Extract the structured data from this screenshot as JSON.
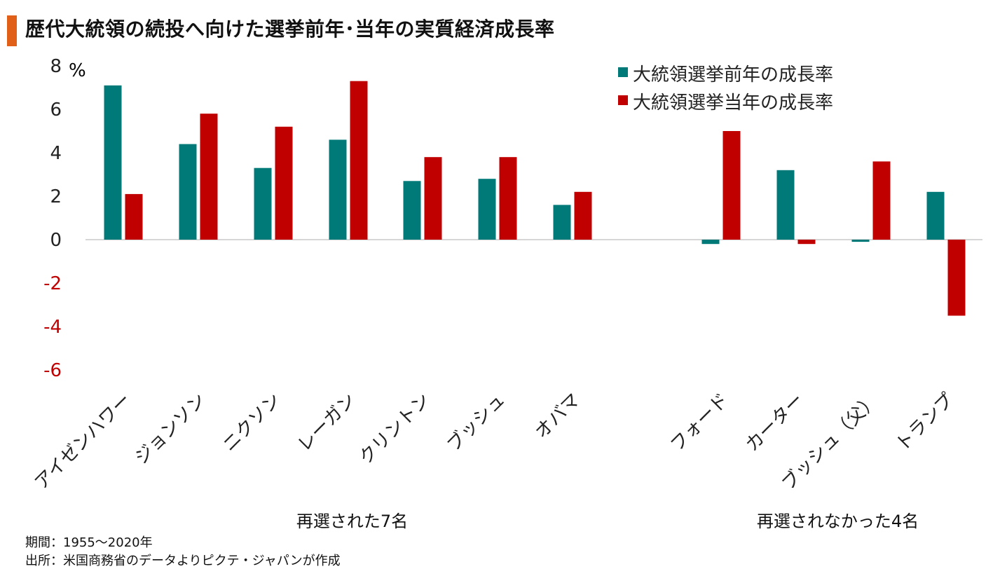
{
  "title": "歴代大統領の続投へ向けた選挙前年･当年の実質経済成長率",
  "colors": {
    "accent": "#e0601a",
    "prev_year": "#007a78",
    "election_year": "#c00000",
    "negative_tick": "#c00000",
    "axis": "#c8c8c8"
  },
  "chart_data": {
    "type": "bar",
    "ylabel": "%",
    "ylim": [
      -6,
      8
    ],
    "yticks": [
      8,
      6,
      4,
      2,
      0,
      -2,
      -4,
      -6
    ],
    "ytick_labels": [
      "8",
      "6",
      "4",
      "2",
      "0",
      "-2",
      "-4",
      "-6"
    ],
    "categories": [
      "アイゼンハワー",
      "ジョンソン",
      "ニクソン",
      "レーガン",
      "クリントン",
      "ブッシュ",
      "オバマ",
      "フォード",
      "カーター",
      "ブッシュ（父）",
      "トランプ"
    ],
    "groups": [
      {
        "label": "再選された7名",
        "count": 7
      },
      {
        "label": "再選されなかった4名",
        "count": 4
      }
    ],
    "legend_position": "top-right",
    "series": [
      {
        "name": "大統領選挙前年の成長率",
        "values": [
          7.1,
          4.4,
          3.3,
          4.6,
          2.7,
          2.8,
          1.6,
          -0.2,
          3.2,
          -0.1,
          2.2
        ]
      },
      {
        "name": "大統領選挙当年の成長率",
        "values": [
          2.1,
          5.8,
          5.2,
          7.3,
          3.8,
          3.8,
          2.2,
          5.0,
          -0.2,
          3.6,
          -3.5
        ]
      }
    ]
  },
  "footnotes": {
    "period": "期間：1955～2020年",
    "source": "出所：米国商務省のデータよりピクテ・ジャパンが作成"
  }
}
